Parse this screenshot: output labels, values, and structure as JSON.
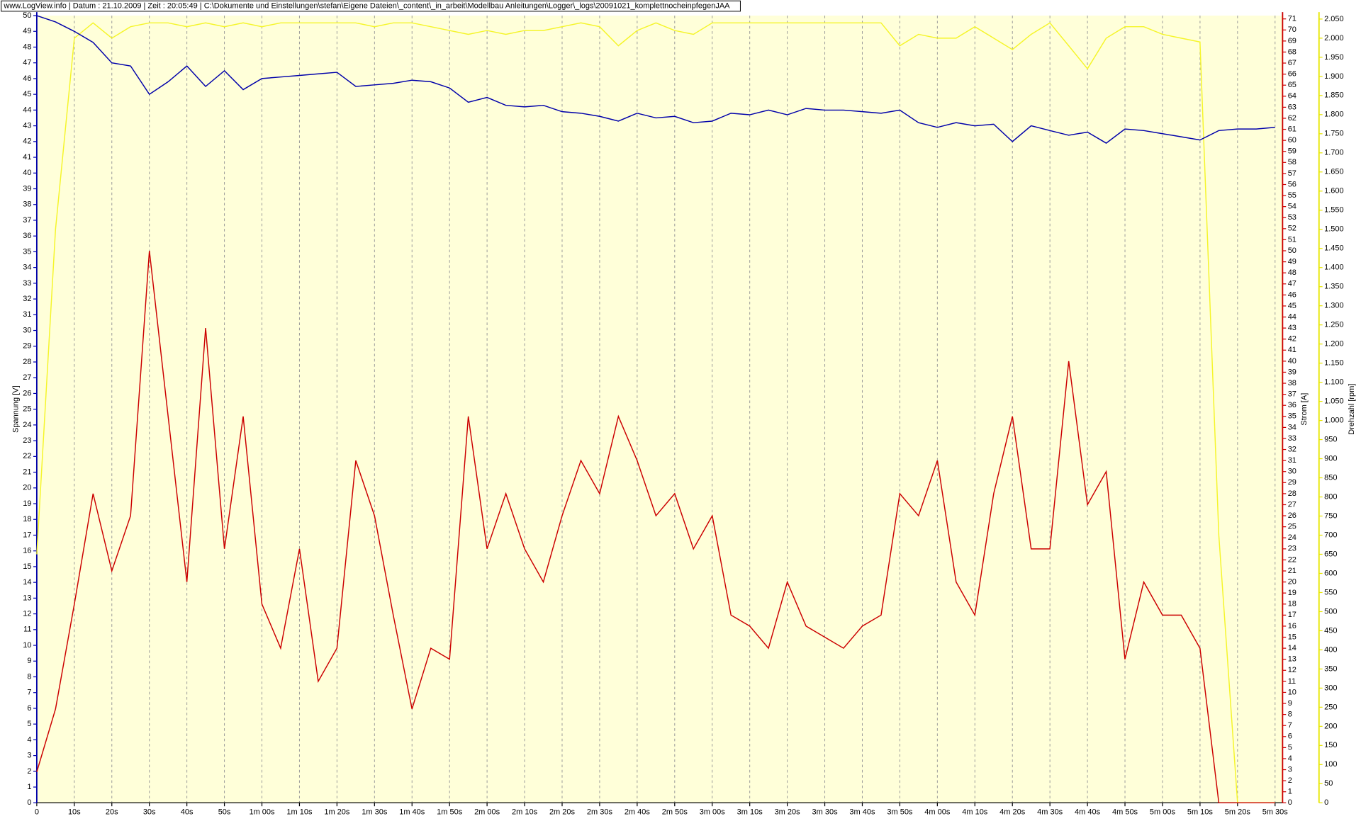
{
  "chart_data": {
    "type": "line",
    "header": "www.LogView.info   |   Datum : 21.10.2009   |   Zeit : 20:05:49   |   C:\\Dokumente und Einstellungen\\stefan\\Eigene Dateien\\_content\\_in_arbeit\\Modellbau Anleitungen\\Logger\\_logs\\20091021_komplettnocheinpfegenJAA",
    "ylabel": "Spannung [V]",
    "y2label": "Strom [A]",
    "y3label": "Drehzahl [rpm]",
    "grid": true,
    "x": [
      0,
      5,
      10,
      15,
      20,
      25,
      30,
      35,
      40,
      45,
      50,
      55,
      60,
      65,
      70,
      75,
      80,
      85,
      90,
      95,
      100,
      105,
      110,
      115,
      120,
      125,
      130,
      135,
      140,
      145,
      150,
      155,
      160,
      165,
      170,
      175,
      180,
      185,
      190,
      195,
      200,
      205,
      210,
      215,
      220,
      225,
      230,
      235,
      240,
      245,
      250,
      255,
      260,
      265,
      270,
      275,
      280,
      285,
      290,
      295,
      300,
      305,
      310,
      315,
      320,
      325,
      330
    ],
    "xlim": [
      0,
      332
    ],
    "xticks": [
      0,
      {
        "value": 10,
        "label": "10s"
      },
      {
        "value": 20,
        "label": "20s"
      },
      {
        "value": 30,
        "label": "30s"
      },
      {
        "value": 40,
        "label": "40s"
      },
      {
        "value": 50,
        "label": "50s"
      },
      {
        "value": 60,
        "label": "1m 00s"
      },
      {
        "value": 70,
        "label": "1m 10s"
      },
      {
        "value": 80,
        "label": "1m 20s"
      },
      {
        "value": 90,
        "label": "1m 30s"
      },
      {
        "value": 100,
        "label": "1m 40s"
      },
      {
        "value": 110,
        "label": "1m 50s"
      },
      {
        "value": 120,
        "label": "2m 00s"
      },
      {
        "value": 130,
        "label": "2m 10s"
      },
      {
        "value": 140,
        "label": "2m 20s"
      },
      {
        "value": 150,
        "label": "2m 30s"
      },
      {
        "value": 160,
        "label": "2m 40s"
      },
      {
        "value": 170,
        "label": "2m 50s"
      },
      {
        "value": 180,
        "label": "3m 00s"
      },
      {
        "value": 190,
        "label": "3m 10s"
      },
      {
        "value": 200,
        "label": "3m 20s"
      },
      {
        "value": 210,
        "label": "3m 30s"
      },
      {
        "value": 220,
        "label": "3m 40s"
      },
      {
        "value": 230,
        "label": "3m 50s"
      },
      {
        "value": 240,
        "label": "4m 00s"
      },
      {
        "value": 250,
        "label": "4m 10s"
      },
      {
        "value": 260,
        "label": "4m 20s"
      },
      {
        "value": 270,
        "label": "4m 30s"
      },
      {
        "value": 280,
        "label": "4m 40s"
      },
      {
        "value": 290,
        "label": "4m 50s"
      },
      {
        "value": 300,
        "label": "5m 00s"
      },
      {
        "value": 310,
        "label": "5m 10s"
      },
      {
        "value": 320,
        "label": "5m 20s"
      },
      {
        "value": 330,
        "label": "5m 30s"
      }
    ],
    "ylim": [
      0,
      50
    ],
    "yticks": [
      0,
      1,
      2,
      3,
      4,
      5,
      6,
      7,
      8,
      9,
      10,
      11,
      12,
      13,
      14,
      15,
      16,
      17,
      18,
      19,
      20,
      21,
      22,
      23,
      24,
      25,
      26,
      27,
      28,
      29,
      30,
      31,
      32,
      33,
      34,
      35,
      36,
      37,
      38,
      39,
      40,
      41,
      42,
      43,
      44,
      45,
      46,
      47,
      48,
      49,
      50
    ],
    "y2lim": [
      0,
      71.3
    ],
    "y2ticks": [
      0,
      1,
      2,
      3,
      4,
      5,
      6,
      7,
      8,
      9,
      10,
      11,
      12,
      13,
      14,
      15,
      16,
      17,
      18,
      19,
      20,
      21,
      22,
      23,
      24,
      25,
      26,
      27,
      28,
      29,
      30,
      31,
      32,
      33,
      34,
      35,
      36,
      37,
      38,
      39,
      40,
      41,
      42,
      43,
      44,
      45,
      46,
      47,
      48,
      49,
      50,
      51,
      52,
      53,
      54,
      55,
      56,
      57,
      58,
      59,
      60,
      61,
      62,
      63,
      64,
      65,
      66,
      67,
      68,
      69,
      70,
      71
    ],
    "y3lim": [
      0,
      2059
    ],
    "y3ticks": [
      0,
      50,
      100,
      150,
      200,
      250,
      300,
      350,
      400,
      450,
      500,
      550,
      600,
      650,
      700,
      750,
      800,
      850,
      900,
      950,
      {
        "value": 1000,
        "label": "1.000"
      },
      {
        "value": 1050,
        "label": "1.050"
      },
      {
        "value": 1100,
        "label": "1.100"
      },
      {
        "value": 1150,
        "label": "1.150"
      },
      {
        "value": 1200,
        "label": "1.200"
      },
      {
        "value": 1250,
        "label": "1.250"
      },
      {
        "value": 1300,
        "label": "1.300"
      },
      {
        "value": 1350,
        "label": "1.350"
      },
      {
        "value": 1400,
        "label": "1.400"
      },
      {
        "value": 1450,
        "label": "1.450"
      },
      {
        "value": 1500,
        "label": "1.500"
      },
      {
        "value": 1550,
        "label": "1.550"
      },
      {
        "value": 1600,
        "label": "1.600"
      },
      {
        "value": 1650,
        "label": "1.650"
      },
      {
        "value": 1700,
        "label": "1.700"
      },
      {
        "value": 1750,
        "label": "1.750"
      },
      {
        "value": 1800,
        "label": "1.800"
      },
      {
        "value": 1850,
        "label": "1.850"
      },
      {
        "value": 1900,
        "label": "1.900"
      },
      {
        "value": 1950,
        "label": "1.950"
      },
      {
        "value": 2000,
        "label": "2.000"
      },
      {
        "value": 2050,
        "label": "2.050"
      }
    ],
    "series": [
      {
        "color": "#f5f52a",
        "axis": "y3",
        "values": [
          650,
          1500,
          2000,
          2040,
          2000,
          2030,
          2040,
          2040,
          2030,
          2040,
          2030,
          2040,
          2030,
          2040,
          2040,
          2040,
          2040,
          2040,
          2030,
          2040,
          2040,
          2030,
          2020,
          2010,
          2020,
          2010,
          2020,
          2020,
          2030,
          2040,
          2030,
          1980,
          2020,
          2040,
          2020,
          2010,
          2040,
          2040,
          2040,
          2040,
          2040,
          2040,
          2040,
          2040,
          2040,
          2040,
          1980,
          2010,
          2000,
          2000,
          2030,
          2000,
          1970,
          2010,
          2040,
          1980,
          1920,
          2000,
          2030,
          2030,
          2010,
          2000,
          1990,
          700,
          0,
          0,
          0
        ]
      },
      {
        "color": "#0000aa",
        "axis": "y",
        "values": [
          50,
          49.6,
          49,
          48.3,
          47,
          46.8,
          45,
          45.8,
          46.8,
          45.5,
          46.5,
          45.3,
          46,
          46.1,
          46.2,
          46.3,
          46.4,
          45.5,
          45.6,
          45.7,
          45.9,
          45.8,
          45.4,
          44.5,
          44.8,
          44.3,
          44.2,
          44.3,
          43.9,
          43.8,
          43.6,
          43.3,
          43.8,
          43.5,
          43.6,
          43.2,
          43.3,
          43.8,
          43.7,
          44,
          43.7,
          44.1,
          44,
          44,
          43.9,
          43.8,
          44,
          43.2,
          42.9,
          43.2,
          43,
          43.1,
          42,
          43,
          42.7,
          42.4,
          42.6,
          41.9,
          42.8,
          42.7,
          42.5,
          42.3,
          42.1,
          42.7,
          42.8,
          42.8,
          42.9
        ]
      },
      {
        "color": "#cc0000",
        "axis": "y2",
        "values": [
          2.8,
          8.5,
          18,
          28,
          21,
          26,
          50,
          35,
          20,
          43,
          23,
          35,
          18,
          14,
          23,
          11,
          14,
          31,
          26,
          17,
          8.5,
          14,
          13,
          35,
          23,
          28,
          23,
          20,
          26,
          31,
          28,
          35,
          31,
          26,
          28,
          23,
          26,
          17,
          16,
          14,
          20,
          16,
          15,
          14,
          16,
          17,
          28,
          26,
          31,
          20,
          17,
          28,
          35,
          23,
          23,
          40,
          27,
          30,
          13,
          20,
          17,
          17,
          14,
          0,
          0,
          0,
          0
        ]
      }
    ]
  }
}
